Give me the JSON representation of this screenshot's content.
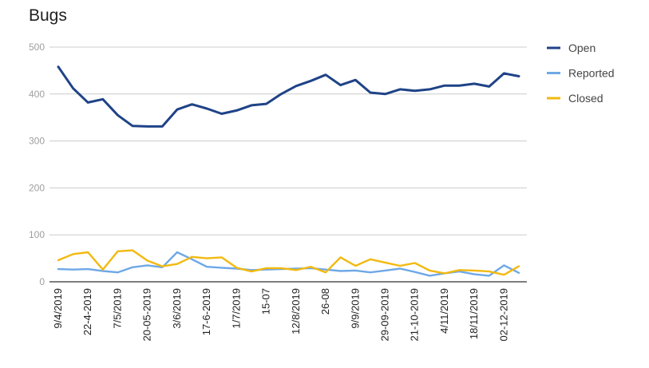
{
  "chart_data": {
    "type": "line",
    "title": "Bugs",
    "xlabel": "",
    "ylabel": "",
    "ylim": [
      0,
      500
    ],
    "yticks": [
      0,
      100,
      200,
      300,
      400,
      500
    ],
    "grid": true,
    "legend_position": "right",
    "x": [
      "9/4/2019",
      "",
      "22-4-2019",
      "",
      "7/5/2019",
      "",
      "20-05-2019",
      "",
      "3/6/2019",
      "",
      "17-6-2019",
      "",
      "1/7/2019",
      "",
      "15-07",
      "",
      "12/8/2019",
      "",
      "26-08",
      "",
      "9/9/2019",
      "",
      "29-09-2019",
      "",
      "21-10-2019",
      "",
      "4/11/2019",
      "",
      "18/11/2019",
      "",
      "02-12-2019",
      ""
    ],
    "series": [
      {
        "name": "Open",
        "color": "#1f4387",
        "values": [
          458,
          412,
          382,
          389,
          355,
          332,
          331,
          331,
          367,
          378,
          369,
          358,
          365,
          376,
          379,
          400,
          417,
          428,
          441,
          419,
          430,
          403,
          400,
          410,
          407,
          410,
          418,
          418,
          422,
          416,
          444,
          438
        ]
      },
      {
        "name": "Reported",
        "color": "#6fa8e6",
        "values": [
          27,
          26,
          27,
          23,
          20,
          31,
          35,
          31,
          63,
          48,
          32,
          30,
          28,
          25,
          26,
          27,
          28,
          29,
          26,
          23,
          24,
          20,
          24,
          28,
          21,
          13,
          18,
          22,
          16,
          13,
          35,
          19
        ]
      },
      {
        "name": "Closed",
        "color": "#f2b90f",
        "values": [
          46,
          59,
          63,
          26,
          65,
          67,
          45,
          33,
          38,
          53,
          50,
          52,
          30,
          22,
          29,
          29,
          25,
          32,
          20,
          52,
          34,
          48,
          41,
          34,
          40,
          24,
          18,
          25,
          24,
          22,
          15,
          33
        ]
      }
    ]
  }
}
